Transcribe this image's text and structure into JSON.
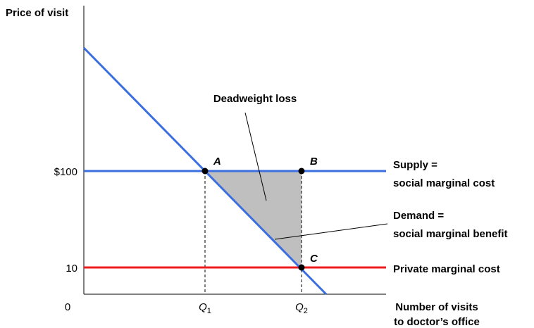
{
  "axes": {
    "y_label": "Price of visit",
    "x_label": [
      "Number of visits",
      "to doctor’s office"
    ],
    "y_ticks": [
      "$100",
      "10"
    ],
    "origin": "0",
    "x_ticks": [
      {
        "letter": "Q",
        "subscript": "1"
      },
      {
        "letter": "Q",
        "subscript": "2"
      }
    ]
  },
  "points": [
    "A",
    "B",
    "C"
  ],
  "annotation": "Deadweight loss",
  "curves": {
    "supply": [
      "Supply =",
      "social marginal cost"
    ],
    "demand": [
      "Demand =",
      "social marginal benefit"
    ],
    "private": "Private marginal cost"
  }
}
